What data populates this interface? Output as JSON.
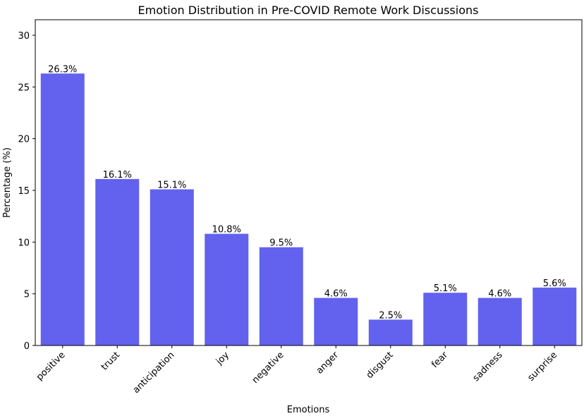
{
  "chart_data": {
    "type": "bar",
    "title": "Emotion Distribution in Pre-COVID Remote Work Discussions",
    "xlabel": "Emotions",
    "ylabel": "Percentage (%)",
    "ylim": [
      0,
      31.5
    ],
    "yticks": [
      0,
      5,
      10,
      15,
      20,
      25,
      30
    ],
    "categories": [
      "positive",
      "trust",
      "anticipation",
      "joy",
      "negative",
      "anger",
      "disgust",
      "fear",
      "sadness",
      "surprise"
    ],
    "values": [
      26.3,
      16.1,
      15.1,
      10.8,
      9.5,
      4.6,
      2.5,
      5.1,
      4.6,
      5.6
    ],
    "value_labels": [
      "26.3%",
      "16.1%",
      "15.1%",
      "10.8%",
      "9.5%",
      "4.6%",
      "2.5%",
      "5.1%",
      "4.6%",
      "5.6%"
    ],
    "bar_color": "#6262ee",
    "grid": false,
    "legend": "none"
  }
}
